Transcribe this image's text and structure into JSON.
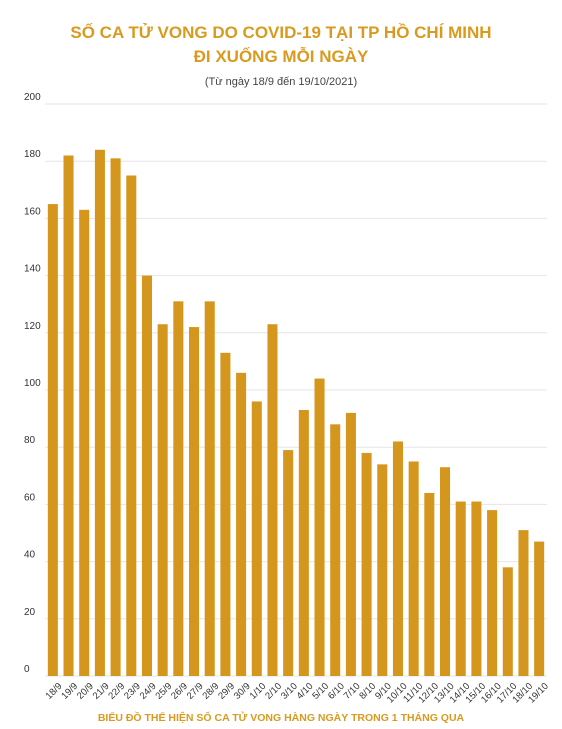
{
  "title_line1": "SỐ CA TỬ VONG DO COVID-19 TẠI TP HỒ CHÍ MINH",
  "title_line2": "ĐI XUỐNG MỖI NGÀY",
  "subtitle": "(Từ ngày 18/9 đến 19/10/2021)",
  "caption": "BIỂU ĐỒ THỂ HIỆN SỐ CA TỬ VONG HÀNG NGÀY TRONG 1 THÁNG QUA",
  "colors": {
    "accent": "#DA9A1F",
    "bar": "#D4961C",
    "grid": "#E6E6E6"
  },
  "chart_data": {
    "type": "bar",
    "categories": [
      "18/9",
      "19/9",
      "20/9",
      "21/9",
      "22/9",
      "23/9",
      "24/9",
      "25/9",
      "26/9",
      "27/9",
      "28/9",
      "29/9",
      "30/9",
      "1/10",
      "2/10",
      "3/10",
      "4/10",
      "5/10",
      "6/10",
      "7/10",
      "8/10",
      "9/10",
      "10/10",
      "11/10",
      "12/10",
      "13/10",
      "14/10",
      "15/10",
      "16/10",
      "17/10",
      "18/10",
      "19/10"
    ],
    "values": [
      165,
      182,
      163,
      184,
      181,
      175,
      140,
      123,
      131,
      122,
      131,
      113,
      106,
      96,
      123,
      79,
      93,
      104,
      88,
      92,
      78,
      74,
      82,
      75,
      64,
      73,
      61,
      61,
      58,
      38,
      51,
      47
    ],
    "ylim": [
      0,
      200
    ],
    "yticks": [
      0,
      20,
      40,
      60,
      80,
      100,
      120,
      140,
      160,
      180,
      200
    ],
    "grid": true,
    "legend": "none"
  }
}
